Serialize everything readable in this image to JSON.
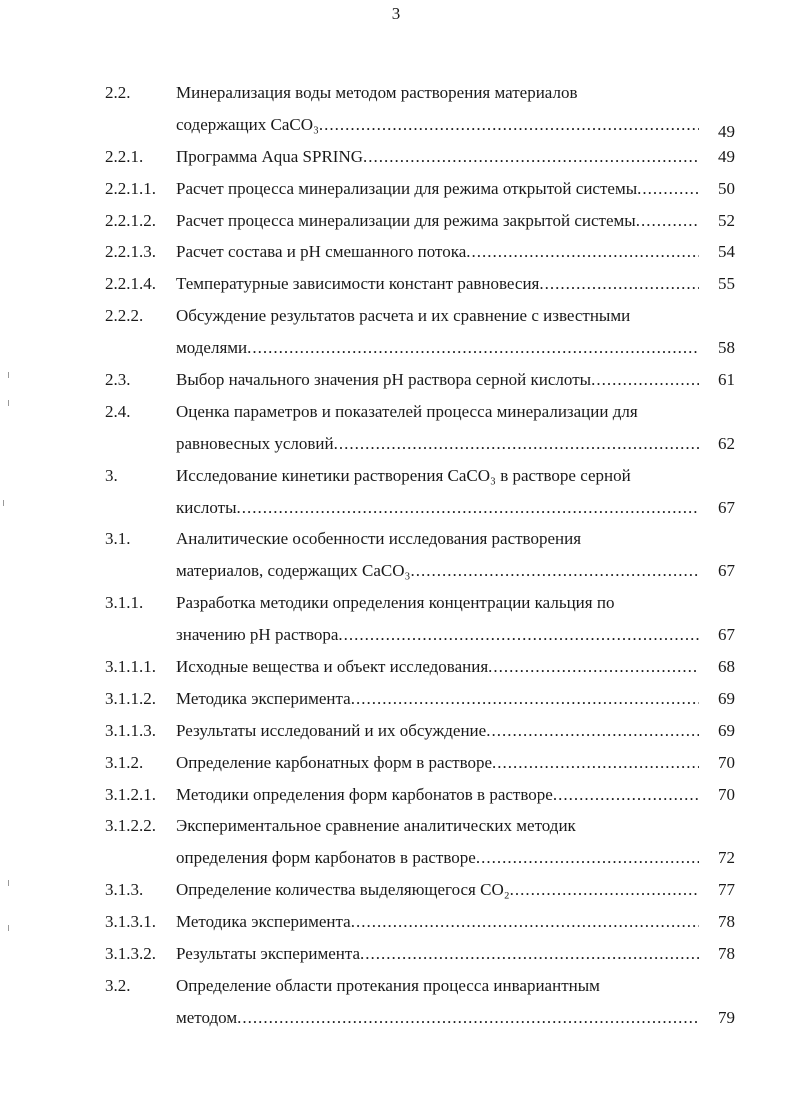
{
  "page_number": "3",
  "entries": [
    {
      "num": "2.2.",
      "lines": [
        "Минерализация воды методом растворения материалов",
        "содержащих CaCO₃"
      ],
      "page": "49"
    },
    {
      "num": "2.2.1.",
      "lines": [
        "Программа Aqua SPRING"
      ],
      "page": "49"
    },
    {
      "num": "2.2.1.1.",
      "lines": [
        "Расчет процесса минерализации для режима открытой системы"
      ],
      "page": "50"
    },
    {
      "num": "2.2.1.2.",
      "lines": [
        "Расчет процесса минерализации для режима закрытой системы"
      ],
      "page": "52"
    },
    {
      "num": "2.2.1.3.",
      "lines": [
        "Расчет состава и pH смешанного потока"
      ],
      "page": "54"
    },
    {
      "num": "2.2.1.4.",
      "lines": [
        "Температурные зависимости констант равновесия"
      ],
      "page": "55"
    },
    {
      "num": "2.2.2.",
      "lines": [
        "Обсуждение результатов расчета и их сравнение с известными",
        "моделями"
      ],
      "page": "58"
    },
    {
      "num": "2.3.",
      "lines": [
        "Выбор начального значения pH раствора серной кислоты"
      ],
      "page": "61"
    },
    {
      "num": "2.4.",
      "lines": [
        "Оценка параметров и показателей процесса минерализации для",
        "равновесных условий"
      ],
      "page": "62"
    },
    {
      "num": "3.",
      "lines": [
        "Исследование кинетики растворения CaCO₃ в растворе серной",
        "кислоты"
      ],
      "page": "67"
    },
    {
      "num": "3.1.",
      "lines": [
        "Аналитические особенности  исследования растворения",
        "материалов, содержащих CaCO₃"
      ],
      "page": "67"
    },
    {
      "num": "3.1.1.",
      "lines": [
        "Разработка методики определения концентрации кальция по",
        "значению pH раствора"
      ],
      "page": "67"
    },
    {
      "num": "3.1.1.1.",
      "lines": [
        "Исходные вещества и объект исследования"
      ],
      "page": "68"
    },
    {
      "num": "3.1.1.2.",
      "lines": [
        "Методика эксперимента"
      ],
      "page": "69"
    },
    {
      "num": "3.1.1.3.",
      "lines": [
        "Результаты исследований и их обсуждение"
      ],
      "page": "69"
    },
    {
      "num": "3.1.2.",
      "lines": [
        "Определение карбонатных форм в растворе"
      ],
      "page": "70"
    },
    {
      "num": "3.1.2.1.",
      "lines": [
        "Методики определения форм карбонатов в растворе"
      ],
      "page": "70"
    },
    {
      "num": "3.1.2.2.",
      "lines": [
        "Экспериментальное сравнение аналитических методик",
        "определения форм карбонатов в растворе"
      ],
      "page": "72"
    },
    {
      "num": "3.1.3.",
      "lines": [
        "Определение количества выделяющегося CO₂"
      ],
      "page": "77"
    },
    {
      "num": "3.1.3.1.",
      "lines": [
        "Методика эксперимента"
      ],
      "page": "78"
    },
    {
      "num": "3.1.3.2.",
      "lines": [
        "Результаты эксперимента"
      ],
      "page": "78"
    },
    {
      "num": "3.2.",
      "lines": [
        "Определение области протекания процесса инвариантным",
        "методом"
      ],
      "page": "79"
    }
  ]
}
